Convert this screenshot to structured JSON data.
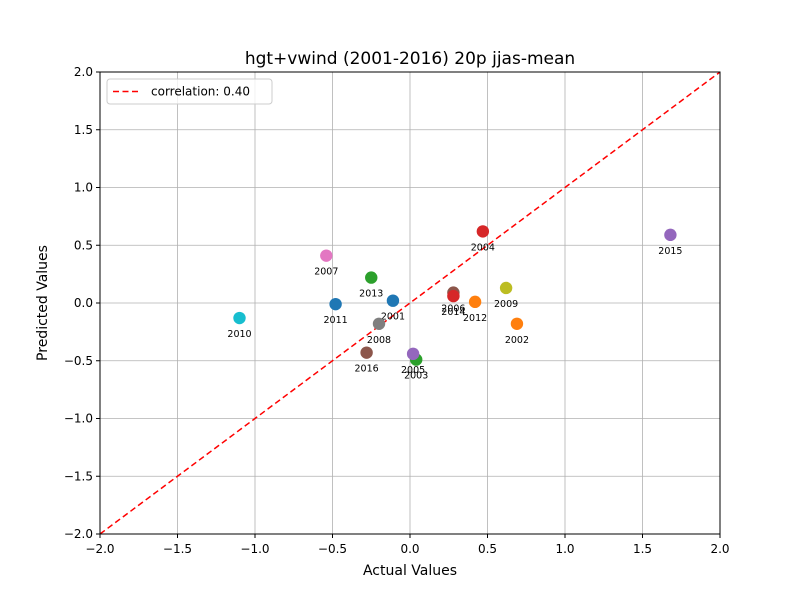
{
  "chart_data": {
    "type": "scatter",
    "title": "hgt+vwind (2001-2016) 20p jjas-mean",
    "xlabel": "Actual Values",
    "ylabel": "Predicted Values",
    "xlim": [
      -2.0,
      2.0
    ],
    "ylim": [
      -2.0,
      2.0
    ],
    "xticks": [
      "−2.0",
      "−1.5",
      "−1.0",
      "−0.5",
      "0.0",
      "0.5",
      "1.0",
      "1.5",
      "2.0"
    ],
    "yticks": [
      "−2.0",
      "−1.5",
      "−1.0",
      "−0.5",
      "0.0",
      "0.5",
      "1.0",
      "1.5",
      "2.0"
    ],
    "grid": true,
    "legend": {
      "position": "top-left",
      "entries": [
        {
          "label": "correlation: 0.40",
          "style": "red dashed line",
          "color": "#ff0000"
        }
      ]
    },
    "reference_line": {
      "from": [
        -2.0,
        -2.0
      ],
      "to": [
        2.0,
        2.0
      ],
      "color": "#ff0000",
      "style": "dashed"
    },
    "points": [
      {
        "label": "2001",
        "x": -0.11,
        "y": 0.02,
        "color": "#1f77b4"
      },
      {
        "label": "2002",
        "x": 0.69,
        "y": -0.18,
        "color": "#ff7f0e"
      },
      {
        "label": "2003",
        "x": 0.04,
        "y": -0.49,
        "color": "#2ca02c"
      },
      {
        "label": "2004",
        "x": 0.47,
        "y": 0.62,
        "color": "#d62728"
      },
      {
        "label": "2005",
        "x": 0.02,
        "y": -0.44,
        "color": "#9467bd"
      },
      {
        "label": "2006",
        "x": 0.28,
        "y": 0.09,
        "color": "#8c564b"
      },
      {
        "label": "2007",
        "x": -0.54,
        "y": 0.41,
        "color": "#e377c2"
      },
      {
        "label": "2008",
        "x": -0.2,
        "y": -0.18,
        "color": "#7f7f7f"
      },
      {
        "label": "2009",
        "x": 0.62,
        "y": 0.13,
        "color": "#bcbd22"
      },
      {
        "label": "2010",
        "x": -1.1,
        "y": -0.13,
        "color": "#17becf"
      },
      {
        "label": "2011",
        "x": -0.48,
        "y": -0.01,
        "color": "#1f77b4"
      },
      {
        "label": "2012",
        "x": 0.42,
        "y": 0.01,
        "color": "#ff7f0e"
      },
      {
        "label": "2013",
        "x": -0.25,
        "y": 0.22,
        "color": "#2ca02c"
      },
      {
        "label": "2014",
        "x": 0.28,
        "y": 0.06,
        "color": "#d62728"
      },
      {
        "label": "2015",
        "x": 1.68,
        "y": 0.59,
        "color": "#9467bd"
      },
      {
        "label": "2016",
        "x": -0.28,
        "y": -0.43,
        "color": "#8c564b"
      }
    ]
  }
}
